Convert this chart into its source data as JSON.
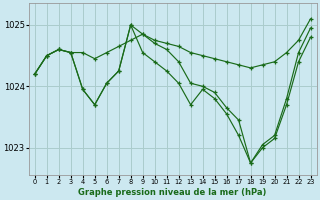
{
  "title": "Graphe pression niveau de la mer (hPa)",
  "bg_color": "#cce8f0",
  "grid_color": "#aacccc",
  "line_color": "#1a6b1a",
  "marker_color": "#1a6b1a",
  "series": [
    [
      1024.2,
      1024.5,
      1024.6,
      1024.55,
      1024.55,
      1024.45,
      1024.55,
      1024.65,
      1024.75,
      1024.85,
      1024.75,
      1024.7,
      1024.65,
      1024.55,
      1024.5,
      1024.45,
      1024.4,
      1024.35,
      1024.3,
      1024.35,
      1024.4,
      1024.55,
      1024.75,
      1025.1
    ],
    [
      1024.2,
      1024.5,
      1024.6,
      1024.55,
      1023.95,
      1023.7,
      1024.05,
      1024.25,
      1025.0,
      1024.85,
      1024.7,
      1024.6,
      1024.4,
      1024.05,
      1024.0,
      1023.9,
      1023.65,
      1023.45,
      1022.75,
      1023.05,
      1023.2,
      1023.8,
      1024.55,
      1024.95
    ],
    [
      1024.2,
      1024.5,
      1024.6,
      1024.55,
      1023.95,
      1023.7,
      1024.05,
      1024.25,
      1025.0,
      1024.55,
      1024.4,
      1024.25,
      1024.05,
      1023.7,
      1023.95,
      1023.8,
      1023.55,
      1023.2,
      1022.75,
      1023.0,
      1023.15,
      1023.7,
      1024.4,
      1024.8
    ]
  ],
  "ylim": [
    1022.55,
    1025.35
  ],
  "yticks": [
    1023,
    1024,
    1025
  ],
  "xticks": [
    0,
    1,
    2,
    3,
    4,
    5,
    6,
    7,
    8,
    9,
    10,
    11,
    12,
    13,
    14,
    15,
    16,
    17,
    18,
    19,
    20,
    21,
    22,
    23
  ],
  "figsize": [
    3.2,
    2.0
  ],
  "dpi": 100
}
